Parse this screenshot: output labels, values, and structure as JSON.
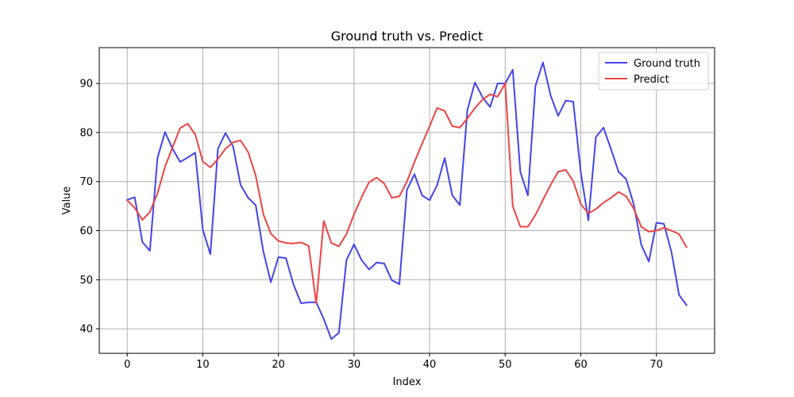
{
  "chart_data": {
    "type": "line",
    "title": "Ground truth vs. Predict",
    "xlabel": "Index",
    "ylabel": "Value",
    "xlim": [
      -3.7,
      77.7
    ],
    "ylim": [
      35.0,
      97.3
    ],
    "xticks": [
      0,
      10,
      20,
      30,
      40,
      50,
      60,
      70
    ],
    "yticks": [
      40,
      50,
      60,
      70,
      80,
      90
    ],
    "grid": true,
    "legend_position": "top-right",
    "series": [
      {
        "name": "Ground truth",
        "color": "#4444ee",
        "x": [
          0,
          1,
          2,
          3,
          4,
          5,
          6,
          7,
          8,
          9,
          10,
          11,
          12,
          13,
          14,
          15,
          16,
          17,
          18,
          19,
          20,
          21,
          22,
          23,
          24,
          25,
          26,
          27,
          28,
          29,
          30,
          31,
          32,
          33,
          34,
          35,
          36,
          37,
          38,
          39,
          40,
          41,
          42,
          43,
          44,
          45,
          46,
          47,
          48,
          49,
          50,
          51,
          52,
          53,
          54,
          55,
          56,
          57,
          58,
          59,
          60,
          61,
          62,
          63,
          64,
          65,
          66,
          67,
          68,
          69,
          70,
          71,
          72,
          73,
          74
        ],
        "values": [
          66.3,
          66.8,
          57.7,
          55.9,
          74.8,
          80.1,
          76.7,
          74.0,
          74.9,
          75.9,
          60.2,
          55.2,
          76.7,
          79.9,
          77.2,
          69.3,
          66.7,
          65.2,
          55.8,
          49.5,
          54.6,
          54.4,
          49.0,
          45.2,
          45.4,
          45.4,
          42.0,
          37.9,
          39.2,
          54.0,
          57.2,
          54.0,
          52.1,
          53.5,
          53.3,
          49.9,
          49.1,
          68.3,
          71.5,
          67.2,
          66.2,
          69.3,
          74.8,
          67.2,
          65.2,
          84.6,
          90.2,
          87.2,
          85.2,
          90.0,
          90.0,
          92.8,
          72.0,
          67.2,
          89.5,
          94.3,
          87.6,
          83.4,
          86.5,
          86.3,
          71.9,
          62.1,
          79.1,
          81.0,
          76.6,
          72.0,
          70.5,
          65.4,
          57.1,
          53.7,
          61.6,
          61.4,
          55.6,
          46.9,
          44.8
        ]
      },
      {
        "name": "Predict",
        "color": "#ee4444",
        "x": [
          0,
          1,
          2,
          3,
          4,
          5,
          6,
          7,
          8,
          9,
          10,
          11,
          12,
          13,
          14,
          15,
          16,
          17,
          18,
          19,
          20,
          21,
          22,
          23,
          24,
          25,
          26,
          27,
          28,
          29,
          30,
          31,
          32,
          33,
          34,
          35,
          36,
          37,
          38,
          39,
          40,
          41,
          42,
          43,
          44,
          45,
          46,
          47,
          48,
          49,
          50,
          51,
          52,
          53,
          54,
          55,
          56,
          57,
          58,
          59,
          60,
          61,
          62,
          63,
          64,
          65,
          66,
          67,
          68,
          69,
          70,
          71,
          72,
          73,
          74
        ],
        "values": [
          66.2,
          64.6,
          62.2,
          63.8,
          67.6,
          73.0,
          77.0,
          80.9,
          81.8,
          79.6,
          74.1,
          72.9,
          74.6,
          76.7,
          78.0,
          78.4,
          76.0,
          71.2,
          63.4,
          59.4,
          57.9,
          57.5,
          57.4,
          57.6,
          56.9,
          45.2,
          62.0,
          57.5,
          56.8,
          59.3,
          63.3,
          66.8,
          69.9,
          70.8,
          69.6,
          66.7,
          67.0,
          70.0,
          74.0,
          77.7,
          81.3,
          85.0,
          84.4,
          81.3,
          81.0,
          82.9,
          85.0,
          86.7,
          87.8,
          87.3,
          90.0,
          65.0,
          60.8,
          60.8,
          63.2,
          66.3,
          69.3,
          72.0,
          72.4,
          70.1,
          65.4,
          63.5,
          64.4,
          65.7,
          66.7,
          67.9,
          67.0,
          64.5,
          60.8,
          59.8,
          60.0,
          60.6,
          60.0,
          59.3,
          56.6
        ]
      }
    ]
  }
}
